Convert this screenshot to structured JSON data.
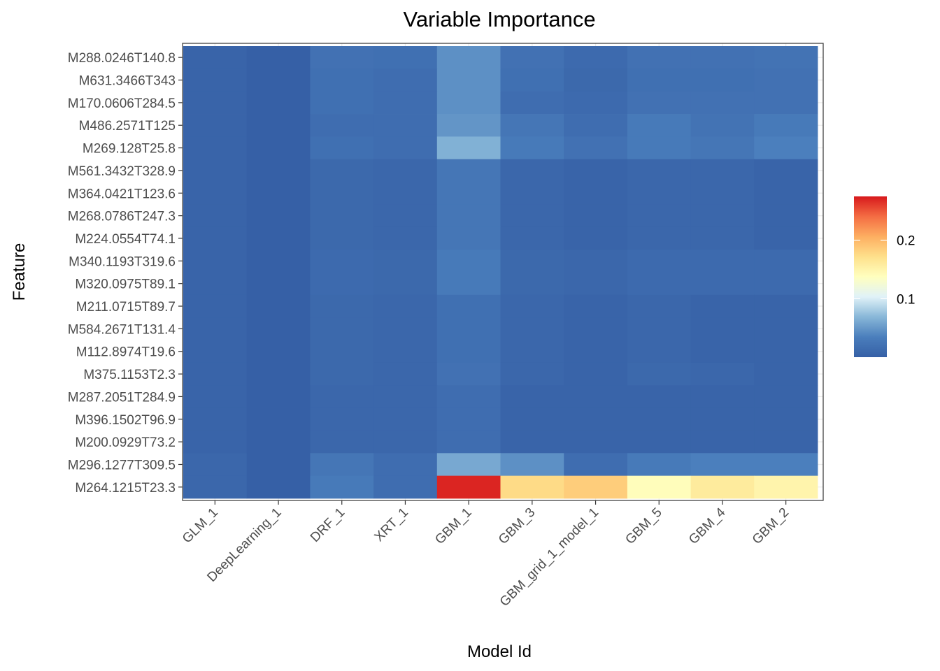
{
  "chart_data": {
    "type": "heatmap",
    "title": "Variable Importance",
    "xlabel": "Model Id",
    "ylabel": "Feature",
    "models": [
      "GLM_1",
      "DeepLearning_1",
      "DRF_1",
      "XRT_1",
      "GBM_1",
      "GBM_3",
      "GBM_grid_1_model_1",
      "GBM_5",
      "GBM_4",
      "GBM_2"
    ],
    "features": [
      "M288.0246T140.8",
      "M631.3466T343",
      "M170.0606T284.5",
      "M486.2571T125",
      "M269.128T25.8",
      "M561.3432T328.9",
      "M364.0421T123.6",
      "M268.0786T247.3",
      "M224.0554T74.1",
      "M340.1193T319.6",
      "M320.0975T89.1",
      "M211.0715T89.7",
      "M584.2671T131.4",
      "M112.8974T19.6",
      "M375.1153T2.3",
      "M287.2051T284.9",
      "M396.1502T96.9",
      "M200.0929T73.2",
      "M296.1277T309.5",
      "M264.1215T23.3"
    ],
    "values": [
      [
        0.005,
        0.0,
        0.02,
        0.018,
        0.045,
        0.02,
        0.012,
        0.02,
        0.02,
        0.022
      ],
      [
        0.005,
        0.0,
        0.018,
        0.015,
        0.045,
        0.018,
        0.01,
        0.018,
        0.018,
        0.02
      ],
      [
        0.005,
        0.0,
        0.018,
        0.015,
        0.045,
        0.015,
        0.012,
        0.02,
        0.02,
        0.02
      ],
      [
        0.005,
        0.0,
        0.015,
        0.015,
        0.048,
        0.025,
        0.015,
        0.03,
        0.022,
        0.03
      ],
      [
        0.005,
        0.0,
        0.018,
        0.015,
        0.065,
        0.03,
        0.02,
        0.03,
        0.025,
        0.035
      ],
      [
        0.005,
        0.0,
        0.01,
        0.008,
        0.025,
        0.008,
        0.005,
        0.008,
        0.008,
        0.005
      ],
      [
        0.005,
        0.0,
        0.01,
        0.008,
        0.025,
        0.008,
        0.005,
        0.008,
        0.008,
        0.005
      ],
      [
        0.005,
        0.0,
        0.01,
        0.008,
        0.025,
        0.008,
        0.005,
        0.008,
        0.008,
        0.005
      ],
      [
        0.005,
        0.0,
        0.01,
        0.008,
        0.025,
        0.008,
        0.005,
        0.008,
        0.008,
        0.005
      ],
      [
        0.005,
        0.0,
        0.012,
        0.01,
        0.03,
        0.01,
        0.008,
        0.012,
        0.012,
        0.012
      ],
      [
        0.005,
        0.0,
        0.012,
        0.01,
        0.03,
        0.01,
        0.008,
        0.012,
        0.012,
        0.012
      ],
      [
        0.005,
        0.0,
        0.01,
        0.008,
        0.018,
        0.008,
        0.005,
        0.008,
        0.005,
        0.005
      ],
      [
        0.005,
        0.0,
        0.01,
        0.008,
        0.018,
        0.008,
        0.005,
        0.008,
        0.005,
        0.005
      ],
      [
        0.005,
        0.0,
        0.01,
        0.008,
        0.018,
        0.008,
        0.005,
        0.008,
        0.005,
        0.005
      ],
      [
        0.005,
        0.0,
        0.01,
        0.008,
        0.02,
        0.008,
        0.005,
        0.01,
        0.008,
        0.005
      ],
      [
        0.005,
        0.0,
        0.008,
        0.008,
        0.015,
        0.005,
        0.005,
        0.005,
        0.005,
        0.005
      ],
      [
        0.005,
        0.0,
        0.008,
        0.008,
        0.015,
        0.005,
        0.005,
        0.005,
        0.005,
        0.005
      ],
      [
        0.005,
        0.0,
        0.008,
        0.008,
        0.015,
        0.005,
        0.005,
        0.005,
        0.005,
        0.005
      ],
      [
        0.008,
        0.0,
        0.025,
        0.015,
        0.06,
        0.045,
        0.015,
        0.03,
        0.035,
        0.035
      ],
      [
        0.008,
        0.0,
        0.03,
        0.015,
        0.27,
        0.175,
        0.185,
        0.14,
        0.16,
        0.15
      ]
    ],
    "colorbar": {
      "min": 0.0,
      "max": 0.275,
      "ticks": [
        0.1,
        0.2
      ],
      "tick_labels": [
        "0.1",
        "0.2"
      ],
      "colors": [
        "#3660A6",
        "#4A7EBC",
        "#88B7D8",
        "#E0F2F8",
        "#FFFFBF",
        "#FEE08B",
        "#FDAE61",
        "#F46D43",
        "#D7191C"
      ]
    },
    "grid": true,
    "legend_position": "right"
  }
}
